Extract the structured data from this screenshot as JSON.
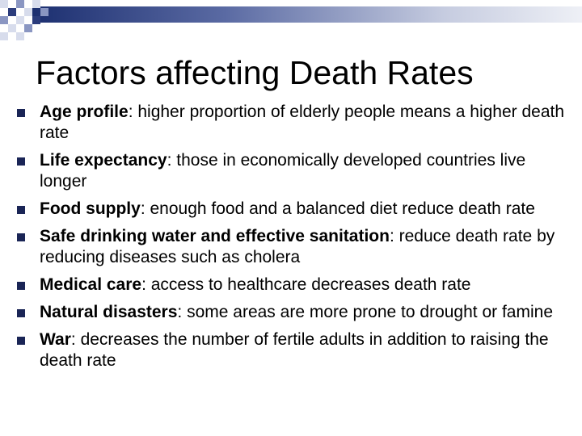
{
  "slide": {
    "title": "Factors affecting Death Rates",
    "bullets": [
      {
        "term": "Age profile",
        "text": ": higher proportion of elderly people means a higher death rate"
      },
      {
        "term": "Life expectancy",
        "text": ": those in economically developed countries live longer"
      },
      {
        "term": "Food supply",
        "text": ": enough food and a balanced diet reduce death rate"
      },
      {
        "term": "Safe drinking water and effective sanitation",
        "text": ": reduce death rate by reducing diseases such as cholera"
      },
      {
        "term": "Medical care",
        "text": ": access to healthcare decreases death rate"
      },
      {
        "term": "Natural disasters",
        "text": ": some areas are more prone to drought or famine"
      },
      {
        "term": "War",
        "text": ": decreases the number of fertile adults in addition to raising the death rate"
      }
    ]
  },
  "colors": {
    "bullet": "#1a2556",
    "band_dark": "#1c2f70",
    "band_light": "#eef0f6",
    "check_dark": "#2b3c7c",
    "check_mid": "#8a96c2",
    "check_light": "#d7dcec"
  }
}
